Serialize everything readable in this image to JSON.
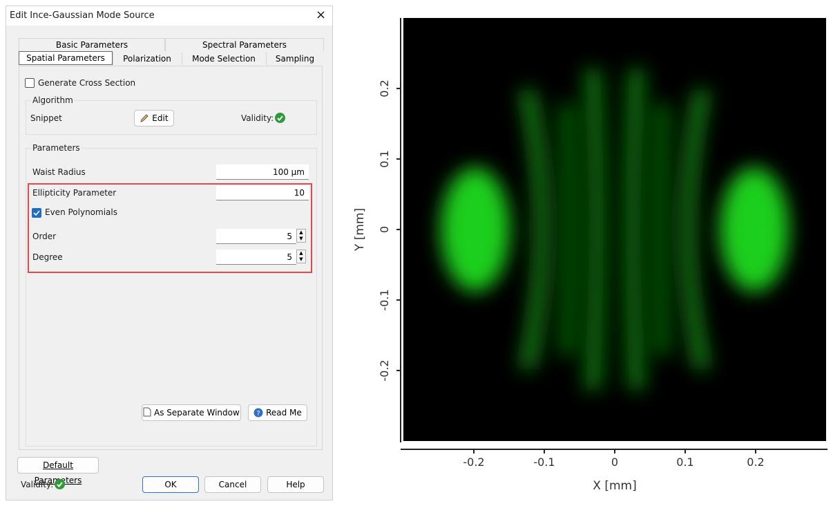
{
  "dialog": {
    "title": "Edit Ince-Gaussian Mode Source",
    "tabs_row1": [
      "Basic Parameters",
      "Spectral Parameters"
    ],
    "tabs_row2": [
      "Spatial Parameters",
      "Polarization",
      "Mode Selection",
      "Sampling"
    ],
    "generate_cross_section": "Generate Cross Section",
    "algorithm": {
      "title": "Algorithm",
      "snippet": "Snippet",
      "edit": "Edit",
      "validity": "Validity:"
    },
    "parameters": {
      "title": "Parameters",
      "waist_radius": {
        "label": "Waist Radius",
        "value": "100 µm"
      },
      "ellipticity": {
        "label": "Ellipticity Parameter",
        "value": "10"
      },
      "even_polynomials": "Even Polynomials",
      "order": {
        "label": "Order",
        "value": "5"
      },
      "degree": {
        "label": "Degree",
        "value": "5"
      }
    },
    "separate_window": "As Separate Window",
    "read_me": "Read Me",
    "default_parameters": "Default Parameters",
    "validity": "Validity:",
    "ok": "OK",
    "cancel": "Cancel",
    "help": "Help"
  },
  "plot": {
    "xlabel": "X [mm]",
    "ylabel": "Y [mm]",
    "xlim": [
      -0.3,
      0.3
    ],
    "ylim": [
      -0.3,
      0.3
    ],
    "xticks": [
      -0.2,
      -0.1,
      0,
      0.1,
      0.2
    ],
    "yticks": [
      -0.2,
      -0.1,
      0,
      0.1,
      0.2
    ]
  }
}
